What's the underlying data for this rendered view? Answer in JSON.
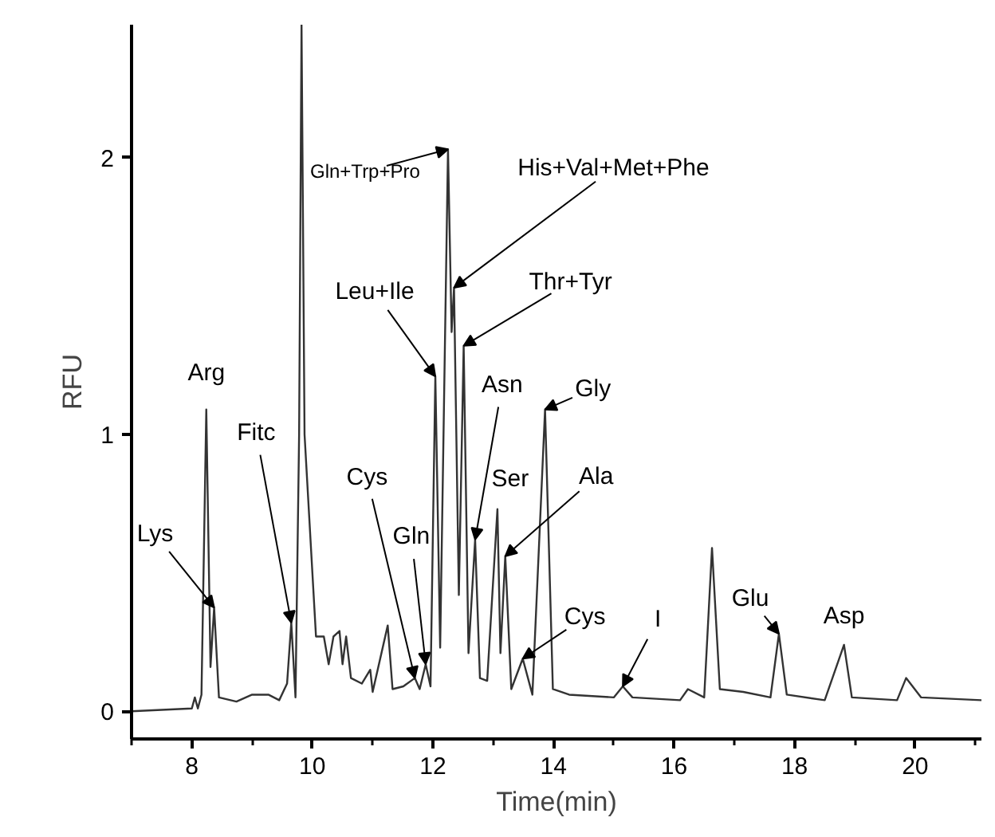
{
  "chart_data": {
    "type": "line",
    "xlabel": "Time(min)",
    "ylabel": "RFU",
    "xlim": [
      7,
      21.1
    ],
    "ylim": [
      -0.1,
      2.48
    ],
    "xticks": [
      8,
      10,
      12,
      14,
      16,
      18,
      20
    ],
    "yticks": [
      0,
      1,
      2
    ],
    "grid": false,
    "marker": "none",
    "line_style": "solid",
    "series": [
      {
        "color": "#333333",
        "x": [
          7.0,
          8.0,
          8.05,
          8.1,
          8.16,
          8.24,
          8.31,
          8.37,
          8.45,
          8.74,
          9.0,
          9.27,
          9.45,
          9.58,
          9.65,
          9.72,
          9.78,
          9.82,
          9.87,
          10.06,
          10.19,
          10.27,
          10.35,
          10.45,
          10.5,
          10.56,
          10.64,
          10.82,
          10.96,
          11.0,
          11.25,
          11.33,
          11.51,
          11.7,
          11.78,
          11.88,
          11.96,
          12.04,
          12.12,
          12.25,
          12.31,
          12.35,
          12.43,
          12.51,
          12.59,
          12.7,
          12.78,
          12.9,
          13.07,
          13.12,
          13.2,
          13.3,
          13.49,
          13.65,
          13.86,
          13.99,
          14.26,
          15.0,
          15.15,
          15.31,
          16.1,
          16.23,
          16.5,
          16.63,
          16.76,
          17.15,
          17.6,
          17.74,
          17.87,
          18.5,
          18.82,
          18.95,
          19.7,
          19.85,
          20.1,
          21.1
        ],
        "values": [
          0.0,
          0.01,
          0.05,
          0.01,
          0.06,
          1.09,
          0.16,
          0.375,
          0.05,
          0.035,
          0.06,
          0.06,
          0.04,
          0.1,
          0.32,
          0.05,
          1.0,
          2.48,
          1.0,
          0.27,
          0.27,
          0.17,
          0.27,
          0.29,
          0.17,
          0.27,
          0.12,
          0.1,
          0.15,
          0.07,
          0.31,
          0.08,
          0.09,
          0.12,
          0.08,
          0.17,
          0.09,
          1.21,
          0.23,
          2.03,
          1.37,
          1.53,
          0.42,
          1.32,
          0.21,
          0.62,
          0.12,
          0.11,
          0.73,
          0.21,
          0.56,
          0.08,
          0.19,
          0.06,
          1.09,
          0.08,
          0.06,
          0.05,
          0.09,
          0.05,
          0.04,
          0.08,
          0.05,
          0.59,
          0.08,
          0.07,
          0.05,
          0.28,
          0.06,
          0.04,
          0.24,
          0.05,
          0.04,
          0.12,
          0.05,
          0.04
        ]
      }
    ],
    "annotations": [
      {
        "text": "Lys",
        "x": 8.37,
        "y": 0.375
      },
      {
        "text": "Arg",
        "x": 8.24,
        "y": 1.09
      },
      {
        "text": "Fitc",
        "x": 9.65,
        "y": 0.32
      },
      {
        "text": "Cys",
        "x": 11.7,
        "y": 0.12
      },
      {
        "text": "Gln",
        "x": 11.88,
        "y": 0.17
      },
      {
        "text": "Leu+Ile",
        "x": 12.04,
        "y": 1.21
      },
      {
        "text": "Gln+Trp+Pro",
        "x": 12.25,
        "y": 2.03
      },
      {
        "text": "His+Val+Met+Phe",
        "x": 12.35,
        "y": 1.53
      },
      {
        "text": "Thr+Tyr",
        "x": 12.51,
        "y": 1.32
      },
      {
        "text": "Asn",
        "x": 12.7,
        "y": 0.62
      },
      {
        "text": "Gly",
        "x": 13.86,
        "y": 1.09
      },
      {
        "text": "Ser",
        "x": 13.07,
        "y": 0.73
      },
      {
        "text": "Ala",
        "x": 13.2,
        "y": 0.56
      },
      {
        "text": "Cys",
        "x": 13.49,
        "y": 0.19
      },
      {
        "text": "I",
        "x": 15.15,
        "y": 0.09
      },
      {
        "text": "Glu",
        "x": 17.74,
        "y": 0.28
      },
      {
        "text": "Asp",
        "x": 18.82,
        "y": 0.24
      }
    ]
  }
}
